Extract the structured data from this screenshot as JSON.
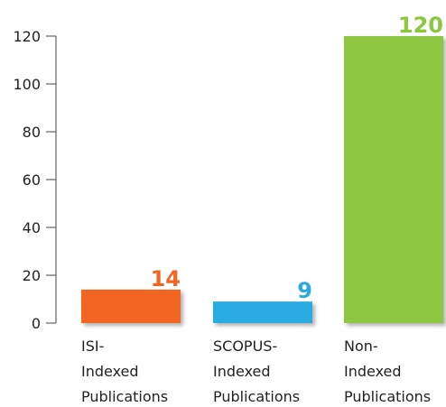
{
  "chart_data": {
    "type": "bar",
    "categories": [
      [
        "ISI-",
        "Indexed",
        "Publications"
      ],
      [
        "SCOPUS-",
        "Indexed",
        "Publications"
      ],
      [
        "Non-",
        "Indexed",
        "Publications"
      ]
    ],
    "values": [
      14,
      9,
      120
    ],
    "colors": [
      "#f26522",
      "#29abe2",
      "#8dc63f"
    ],
    "ylim": [
      0,
      120
    ],
    "yticks": [
      0,
      20,
      40,
      60,
      80,
      100,
      120
    ]
  }
}
